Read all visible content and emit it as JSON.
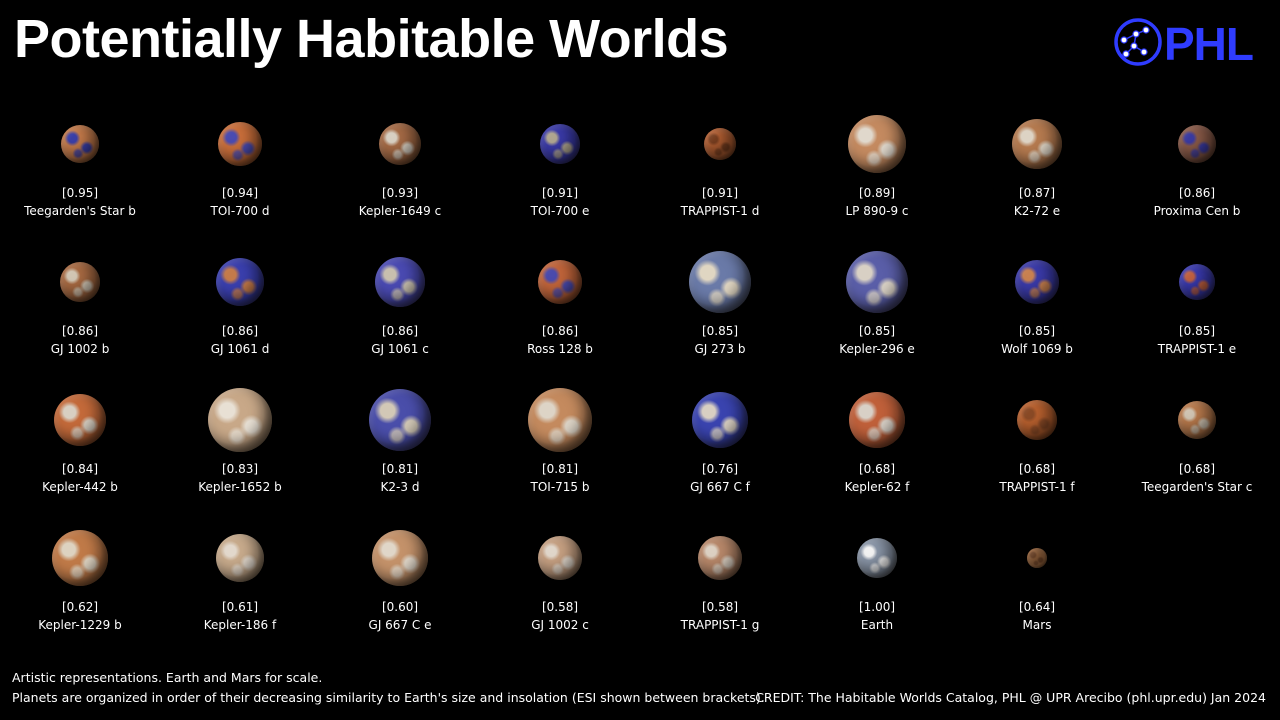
{
  "title": "Potentially Habitable Worlds",
  "logo": {
    "text": "PHL",
    "color": "#2f3cff"
  },
  "rows": [
    [
      {
        "esi": "[0.95]",
        "name": "Teegarden's Star b",
        "size": 38,
        "colors": [
          "#c47a4a",
          "#3a3fa8"
        ]
      },
      {
        "esi": "[0.94]",
        "name": "TOI-700 d",
        "size": 44,
        "colors": [
          "#c96e3a",
          "#4a4bb0"
        ]
      },
      {
        "esi": "[0.93]",
        "name": "Kepler-1649 c",
        "size": 42,
        "colors": [
          "#a56a45",
          "#d8cfc2"
        ]
      },
      {
        "esi": "[0.91]",
        "name": "TOI-700 e",
        "size": 40,
        "colors": [
          "#3a3aa8",
          "#b0a690"
        ]
      },
      {
        "esi": "[0.91]",
        "name": "TRAPPIST-1 d",
        "size": 32,
        "colors": [
          "#b45f32",
          "#7a3f20"
        ]
      },
      {
        "esi": "[0.89]",
        "name": "LP 890-9 c",
        "size": 58,
        "colors": [
          "#c48a60",
          "#e0d8cc"
        ]
      },
      {
        "esi": "[0.87]",
        "name": "K2-72 e",
        "size": 50,
        "colors": [
          "#b57a4f",
          "#ddd3c4"
        ]
      },
      {
        "esi": "[0.86]",
        "name": "Proxima Cen b",
        "size": 38,
        "colors": [
          "#8a5a48",
          "#3a3aa0"
        ]
      }
    ],
    [
      {
        "esi": "[0.86]",
        "name": "GJ 1002 b",
        "size": 40,
        "colors": [
          "#a86a42",
          "#d2c6b4"
        ]
      },
      {
        "esi": "[0.86]",
        "name": "GJ 1061 d",
        "size": 48,
        "colors": [
          "#3a3fae",
          "#c47a4a"
        ]
      },
      {
        "esi": "[0.86]",
        "name": "GJ 1061 c",
        "size": 50,
        "colors": [
          "#4a4ab2",
          "#c8bfae"
        ]
      },
      {
        "esi": "[0.86]",
        "name": "Ross 128 b",
        "size": 44,
        "colors": [
          "#c0643a",
          "#4a4aac"
        ]
      },
      {
        "esi": "[0.85]",
        "name": "GJ 273 b",
        "size": 62,
        "colors": [
          "#6a7aa8",
          "#e0d6c2"
        ]
      },
      {
        "esi": "[0.85]",
        "name": "Kepler-296 e",
        "size": 62,
        "colors": [
          "#5a5ea8",
          "#d8d0c4"
        ]
      },
      {
        "esi": "[0.85]",
        "name": "Wolf 1069 b",
        "size": 44,
        "colors": [
          "#3a3aa8",
          "#c88050"
        ]
      },
      {
        "esi": "[0.85]",
        "name": "TRAPPIST-1 e",
        "size": 36,
        "colors": [
          "#3a3ab0",
          "#c06040"
        ]
      }
    ],
    [
      {
        "esi": "[0.84]",
        "name": "Kepler-442 b",
        "size": 52,
        "colors": [
          "#c46a3a",
          "#d8cfc2"
        ]
      },
      {
        "esi": "[0.83]",
        "name": "Kepler-1652 b",
        "size": 64,
        "colors": [
          "#c8a888",
          "#e8e0d4"
        ]
      },
      {
        "esi": "[0.81]",
        "name": "K2-3 d",
        "size": 62,
        "colors": [
          "#4a4eaa",
          "#d2c8b6"
        ]
      },
      {
        "esi": "[0.81]",
        "name": "TOI-715 b",
        "size": 64,
        "colors": [
          "#c48a5e",
          "#ddd4c6"
        ]
      },
      {
        "esi": "[0.76]",
        "name": "GJ 667 C f",
        "size": 56,
        "colors": [
          "#3a44b0",
          "#d8cfc2"
        ]
      },
      {
        "esi": "[0.68]",
        "name": "Kepler-62 f",
        "size": 56,
        "colors": [
          "#c0603a",
          "#d8d0c6"
        ]
      },
      {
        "esi": "[0.68]",
        "name": "TRAPPIST-1 f",
        "size": 40,
        "colors": [
          "#b8602e",
          "#8a4a26"
        ]
      },
      {
        "esi": "[0.68]",
        "name": "Teegarden's Star c",
        "size": 38,
        "colors": [
          "#b97a4c",
          "#d0c4b2"
        ]
      }
    ],
    [
      {
        "esi": "[0.62]",
        "name": "Kepler-1229 b",
        "size": 56,
        "colors": [
          "#c07a48",
          "#ddd2c0"
        ]
      },
      {
        "esi": "[0.61]",
        "name": "Kepler-186 f",
        "size": 48,
        "colors": [
          "#c8ab8c",
          "#e2d8cc"
        ]
      },
      {
        "esi": "[0.60]",
        "name": "GJ 667 C e",
        "size": 56,
        "colors": [
          "#c4926a",
          "#e0d6c8"
        ]
      },
      {
        "esi": "[0.58]",
        "name": "GJ 1002 c",
        "size": 44,
        "colors": [
          "#c6a082",
          "#e0d6ca"
        ]
      },
      {
        "esi": "[0.58]",
        "name": "TRAPPIST-1 g",
        "size": 44,
        "colors": [
          "#b8886a",
          "#dcd0c2"
        ]
      },
      {
        "esi": "[1.00]",
        "name": "Earth",
        "size": 40,
        "colors": [
          "#8a96a8",
          "#f2f2f2"
        ]
      },
      {
        "esi": "[0.64]",
        "name": "Mars",
        "size": 20,
        "colors": [
          "#b87a4a",
          "#8a5532"
        ]
      }
    ]
  ],
  "footer": {
    "line1": "Artistic representations. Earth and Mars for scale.",
    "line2": "Planets are organized in order of their decreasing similarity to Earth's size and insolation (ESI shown between brackets).",
    "credit": "CREDIT: The Habitable Worlds Catalog, PHL @ UPR Arecibo (phl.upr.edu) Jan 2024"
  }
}
